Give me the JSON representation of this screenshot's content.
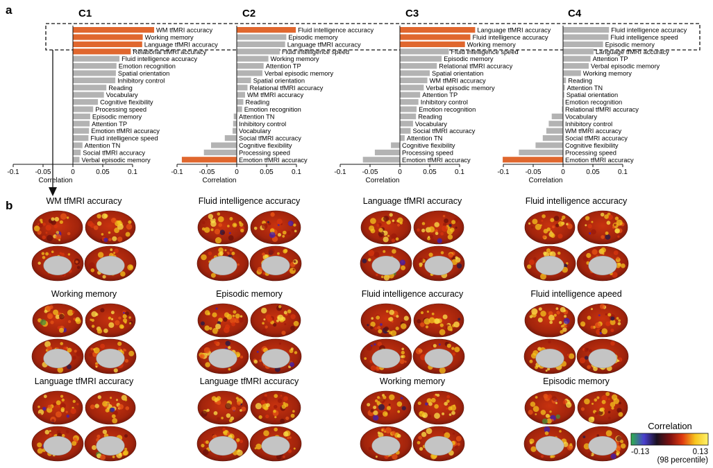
{
  "panel_labels": {
    "a": "a",
    "b": "b"
  },
  "colors": {
    "bar": "#b3b3b3",
    "highlight": "#e0672e",
    "axis": "#111111"
  },
  "axis": {
    "xlabel": "Correlation",
    "ticks": [
      "-0.1",
      "-0.05",
      "0",
      "0.05",
      "0.1"
    ]
  },
  "chart_data": [
    {
      "type": "bar",
      "title": "C1",
      "xlabel": "Correlation",
      "xlim": [
        -0.1,
        0.15
      ],
      "highlighted": 3,
      "categories": [
        "WM tfMRI accuracy",
        "Working memory",
        "Language tfMRI accuracy",
        "Relational tfMRI accuracy",
        "Fluid intelligence accuracy",
        "Emotion recognition",
        "Spatial orientation",
        "Inhibitory control",
        "Reading",
        "Vocabulary",
        "Cognitive flexibility",
        "Processing speed",
        "Episodic memory",
        "Attention TP",
        "Emotion tfMRI accuracy",
        "Fluid intelligence speed",
        "Attention TN",
        "Social tfMRI accuracy",
        "Verbal episodic memory"
      ],
      "values": [
        0.136,
        0.117,
        0.116,
        0.097,
        0.078,
        0.073,
        0.072,
        0.071,
        0.056,
        0.052,
        0.042,
        0.034,
        0.029,
        0.028,
        0.027,
        0.026,
        0.016,
        0.013,
        0.011
      ],
      "bar_colors": [
        "highlight",
        "highlight",
        "highlight",
        "highlight",
        "bar",
        "bar",
        "bar",
        "bar",
        "bar",
        "bar",
        "bar",
        "bar",
        "bar",
        "bar",
        "bar",
        "bar",
        "bar",
        "bar",
        "bar"
      ]
    },
    {
      "type": "bar",
      "title": "C2",
      "xlabel": "Correlation",
      "xlim": [
        -0.1,
        0.15
      ],
      "highlighted": 3,
      "categories": [
        "Fluid intelligence accuracy",
        "Episodic memory",
        "Language tfMRI accuracy",
        "Fluid intelligence speed",
        "Working memory",
        "Attention TP",
        "Verbal episodic memory",
        "Spatial orientation",
        "Relational tfMRI accuracy",
        "WM tfMRI accuracy",
        "Reading",
        "Emotion recognition",
        "Attention TN",
        "Inhibitory control",
        "Vocabulary",
        "Social tfMRI accuracy",
        "Cognitive flexibility",
        "Processing speed",
        "Emotion tfMRI accuracy"
      ],
      "values": [
        0.099,
        0.083,
        0.081,
        0.072,
        0.053,
        0.045,
        0.043,
        0.024,
        0.018,
        0.014,
        0.011,
        0.009,
        -0.005,
        -0.006,
        -0.007,
        -0.02,
        -0.043,
        -0.055,
        -0.092
      ],
      "bar_colors": [
        "highlight",
        "bar",
        "bar",
        "bar",
        "bar",
        "bar",
        "bar",
        "bar",
        "bar",
        "bar",
        "bar",
        "bar",
        "bar",
        "bar",
        "bar",
        "bar",
        "bar",
        "bar",
        "highlight"
      ]
    },
    {
      "type": "bar",
      "title": "C3",
      "xlabel": "Correlation",
      "xlim": [
        -0.1,
        0.15
      ],
      "highlighted": 3,
      "categories": [
        "Language tfMRI accuracy",
        "Fluid intelligence accuracy",
        "Working memory",
        "Fluid intelligence speed",
        "Episodic memory",
        "Relational tfMRI accuracy",
        "Spatial orientation",
        "WM tfMRI accuracy",
        "Verbal episodic memory",
        "Attention TP",
        "Inhibitory control",
        "Emotion recognition",
        "Reading",
        "Vocabulary",
        "Social tfMRI accuracy",
        "Attention TN",
        "Cognitive flexibility",
        "Processing speed",
        "Emotion tfMRI accuracy"
      ],
      "values": [
        0.126,
        0.118,
        0.109,
        0.082,
        0.07,
        0.062,
        0.05,
        0.046,
        0.04,
        0.034,
        0.031,
        0.028,
        0.027,
        0.022,
        0.018,
        0.008,
        -0.015,
        -0.042,
        -0.062
      ],
      "bar_colors": [
        "highlight",
        "highlight",
        "highlight",
        "bar",
        "bar",
        "bar",
        "bar",
        "bar",
        "bar",
        "bar",
        "bar",
        "bar",
        "bar",
        "bar",
        "bar",
        "bar",
        "bar",
        "bar",
        "bar"
      ]
    },
    {
      "type": "bar",
      "title": "C4",
      "xlabel": "Correlation",
      "xlim": [
        -0.1,
        0.15
      ],
      "highlighted": 3,
      "categories": [
        "Fluid intelligence accuracy",
        "Fluid intelligence speed",
        "Episodic memory",
        "Language tfMRI accuracy",
        "Attention TP",
        "Verbal episodic memory",
        "Working memory",
        "Reading",
        "Attention TN",
        "Spatial orientation",
        "Emotion recognition",
        "Relational tfMRI accuracy",
        "Vocabulary",
        "Inhibitory control",
        "WM tfMRI accuracy",
        "Social tfMRI accuracy",
        "Cognitive flexibility",
        "Processing speed",
        "Emotion tfMRI accuracy"
      ],
      "values": [
        0.077,
        0.076,
        0.067,
        0.051,
        0.046,
        0.043,
        0.03,
        0.005,
        0.003,
        0.002,
        -0.001,
        -0.002,
        -0.019,
        -0.024,
        -0.028,
        -0.034,
        -0.046,
        -0.074,
        -0.101
      ],
      "bar_colors": [
        "bar",
        "bar",
        "bar",
        "bar",
        "bar",
        "bar",
        "bar",
        "bar",
        "bar",
        "bar",
        "bar",
        "bar",
        "bar",
        "bar",
        "bar",
        "bar",
        "bar",
        "bar",
        "highlight"
      ]
    }
  ],
  "brain_maps": {
    "titles": [
      [
        "WM tfMRI accuracy",
        "Working memory",
        "Language tfMRI accuracy"
      ],
      [
        "Fluid intelligence accuracy",
        "Episodic memory",
        "Language tfMRI accuracy"
      ],
      [
        "Language tfMRI accuracy",
        "Fluid intelligence accuracy",
        "Working memory"
      ],
      [
        "Fluid intelligence accuracy",
        "Fluid intelligence apeed",
        "Episodic memory"
      ]
    ]
  },
  "colorbar": {
    "title": "Correlation",
    "min_label": "-0.13",
    "max_label": "0.13",
    "note": "(98 percentile)",
    "stops": [
      "#2db24a",
      "#4a3fd0",
      "#1a1020",
      "#7a1010",
      "#e03a10",
      "#f7c51e",
      "#fff26a"
    ]
  }
}
